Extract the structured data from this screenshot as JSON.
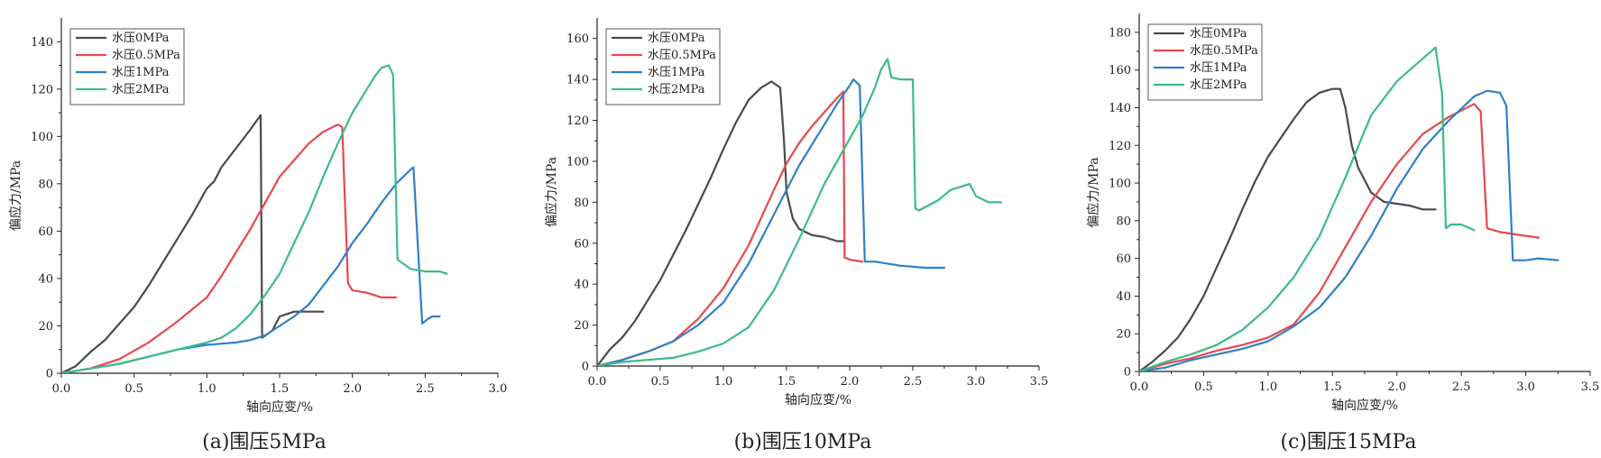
{
  "series_colors": [
    "#4a4a4a",
    "#e8474f",
    "#2f80c6",
    "#3dbb85"
  ],
  "chart_data": [
    {
      "type": "line",
      "caption": "(a)围压5MPa",
      "xlabel": "轴向应变/%",
      "ylabel": "偏应力/MPa",
      "xlim": [
        0,
        3.0
      ],
      "ylim": [
        0,
        150
      ],
      "xticks": [
        0,
        0.5,
        1.0,
        1.5,
        2.0,
        2.5,
        3.0
      ],
      "xtick_labels": [
        "0.0",
        "0.5",
        "1.0",
        "1.5",
        "2.0",
        "2.5",
        "3.0"
      ],
      "yticks": [
        0,
        20,
        40,
        60,
        80,
        100,
        120,
        140
      ],
      "ytick_labels": [
        "0",
        "20",
        "40",
        "60",
        "80",
        "100",
        "120",
        "140"
      ],
      "legend": "top-left",
      "series": [
        {
          "name": "水压0MPa",
          "x": [
            0.0,
            0.1,
            0.2,
            0.3,
            0.4,
            0.5,
            0.6,
            0.7,
            0.8,
            0.9,
            1.0,
            1.05,
            1.1,
            1.2,
            1.3,
            1.37,
            1.38,
            1.45,
            1.5,
            1.6,
            1.7,
            1.8
          ],
          "y": [
            0,
            3,
            9,
            14,
            21,
            28,
            37,
            47,
            57,
            67,
            78,
            81,
            87,
            95,
            103,
            109,
            15,
            18,
            24,
            26,
            26,
            26
          ]
        },
        {
          "name": "水压0.5MPa",
          "x": [
            0.0,
            0.2,
            0.4,
            0.6,
            0.8,
            1.0,
            1.1,
            1.2,
            1.3,
            1.4,
            1.5,
            1.6,
            1.7,
            1.8,
            1.9,
            1.93,
            1.97,
            2.0,
            2.1,
            2.2,
            2.3
          ],
          "y": [
            0,
            2,
            6,
            13,
            22,
            32,
            41,
            51,
            61,
            72,
            83,
            90,
            97,
            102,
            105,
            104,
            38,
            35,
            34,
            32,
            32
          ]
        },
        {
          "name": "水压1MPa",
          "x": [
            0.0,
            0.2,
            0.4,
            0.6,
            0.8,
            1.0,
            1.2,
            1.3,
            1.4,
            1.5,
            1.6,
            1.7,
            1.8,
            1.9,
            2.0,
            2.1,
            2.2,
            2.3,
            2.4,
            2.42,
            2.48,
            2.52,
            2.55,
            2.6
          ],
          "y": [
            0,
            2,
            4,
            7,
            10,
            12,
            13,
            14,
            16,
            20,
            24,
            29,
            37,
            45,
            55,
            63,
            72,
            80,
            86,
            87,
            21,
            23,
            24,
            24
          ]
        },
        {
          "name": "水压2MPa",
          "x": [
            0.0,
            0.2,
            0.4,
            0.6,
            0.8,
            1.0,
            1.1,
            1.2,
            1.3,
            1.4,
            1.5,
            1.6,
            1.7,
            1.8,
            1.9,
            2.0,
            2.1,
            2.15,
            2.2,
            2.25,
            2.28,
            2.31,
            2.4,
            2.5,
            2.6,
            2.65
          ],
          "y": [
            0,
            2,
            4,
            7,
            10,
            13,
            15,
            19,
            25,
            33,
            42,
            55,
            68,
            83,
            97,
            110,
            120,
            125,
            129,
            130,
            126,
            48,
            44,
            43,
            43,
            42
          ]
        }
      ]
    },
    {
      "type": "line",
      "caption": "(b)围压10MPa",
      "xlabel": "轴向应变/%",
      "ylabel": "偏应力/MPa",
      "xlim": [
        0,
        3.5
      ],
      "ylim": [
        0,
        170
      ],
      "xticks": [
        0,
        0.5,
        1.0,
        1.5,
        2.0,
        2.5,
        3.0,
        3.5
      ],
      "xtick_labels": [
        "0.0",
        "0.5",
        "1.0",
        "1.5",
        "2.0",
        "2.5",
        "3.0",
        "3.5"
      ],
      "yticks": [
        0,
        20,
        40,
        60,
        80,
        100,
        120,
        140,
        160
      ],
      "ytick_labels": [
        "0",
        "20",
        "40",
        "60",
        "80",
        "100",
        "120",
        "140",
        "160"
      ],
      "legend": "top-left",
      "series": [
        {
          "name": "水压0MPa",
          "x": [
            0.0,
            0.1,
            0.2,
            0.3,
            0.4,
            0.5,
            0.6,
            0.7,
            0.8,
            0.9,
            1.0,
            1.1,
            1.2,
            1.3,
            1.38,
            1.45,
            1.48,
            1.5,
            1.55,
            1.6,
            1.7,
            1.8,
            1.9,
            1.95
          ],
          "y": [
            0,
            8,
            14,
            22,
            32,
            42,
            54,
            66,
            79,
            92,
            106,
            119,
            130,
            136,
            139,
            136,
            110,
            85,
            72,
            67,
            64,
            63,
            61,
            61
          ]
        },
        {
          "name": "水压0.5MPa",
          "x": [
            0.0,
            0.2,
            0.4,
            0.6,
            0.8,
            1.0,
            1.2,
            1.4,
            1.5,
            1.6,
            1.7,
            1.8,
            1.9,
            1.95,
            1.96,
            2.0,
            2.1
          ],
          "y": [
            0,
            3,
            7,
            12,
            23,
            38,
            59,
            86,
            99,
            109,
            117,
            124,
            131,
            134,
            53,
            52,
            51
          ]
        },
        {
          "name": "水压1MPa",
          "x": [
            0.0,
            0.2,
            0.4,
            0.6,
            0.8,
            1.0,
            1.2,
            1.4,
            1.6,
            1.8,
            1.9,
            2.0,
            2.03,
            2.08,
            2.12,
            2.2,
            2.4,
            2.6,
            2.75
          ],
          "y": [
            0,
            3,
            7,
            12,
            20,
            31,
            50,
            74,
            98,
            118,
            128,
            137,
            140,
            137,
            51,
            51,
            49,
            48,
            48
          ]
        },
        {
          "name": "水压2MPa",
          "x": [
            0.0,
            0.2,
            0.4,
            0.6,
            0.8,
            1.0,
            1.2,
            1.4,
            1.6,
            1.8,
            2.0,
            2.1,
            2.2,
            2.25,
            2.3,
            2.33,
            2.4,
            2.5,
            2.52,
            2.55,
            2.7,
            2.8,
            2.9,
            2.95,
            3.0,
            3.1,
            3.2
          ],
          "y": [
            0,
            2,
            3,
            4,
            7,
            11,
            19,
            37,
            62,
            89,
            111,
            122,
            136,
            145,
            150,
            141,
            140,
            140,
            77,
            76,
            81,
            86,
            88,
            89,
            83,
            80,
            80
          ]
        }
      ]
    },
    {
      "type": "line",
      "caption": "(c)围压15MPa",
      "xlabel": "轴向应变/%",
      "ylabel": "偏应力/MPa",
      "xlim": [
        0,
        3.5
      ],
      "ylim": [
        0,
        190
      ],
      "xticks": [
        0,
        0.5,
        1.0,
        1.5,
        2.0,
        2.5,
        3.0,
        3.5
      ],
      "xtick_labels": [
        "0.0",
        "0.5",
        "1.0",
        "1.5",
        "2.0",
        "2.5",
        "3.0",
        "3.5"
      ],
      "yticks": [
        0,
        20,
        40,
        60,
        80,
        100,
        120,
        140,
        160,
        180
      ],
      "ytick_labels": [
        "0",
        "20",
        "40",
        "60",
        "80",
        "100",
        "120",
        "140",
        "160",
        "180"
      ],
      "legend": "top-left",
      "series": [
        {
          "name": "水压0MPa",
          "x": [
            0.0,
            0.1,
            0.2,
            0.3,
            0.4,
            0.5,
            0.6,
            0.7,
            0.8,
            0.9,
            1.0,
            1.1,
            1.2,
            1.3,
            1.4,
            1.5,
            1.56,
            1.6,
            1.65,
            1.7,
            1.8,
            1.9,
            2.0,
            2.1,
            2.2,
            2.3
          ],
          "y": [
            0,
            5,
            11,
            18,
            28,
            40,
            55,
            70,
            86,
            101,
            114,
            124,
            134,
            143,
            148,
            150,
            150,
            140,
            120,
            108,
            95,
            90,
            89,
            88,
            86,
            86
          ]
        },
        {
          "name": "水压0.5MPa",
          "x": [
            0.0,
            0.2,
            0.4,
            0.6,
            0.8,
            1.0,
            1.2,
            1.4,
            1.6,
            1.8,
            2.0,
            2.2,
            2.4,
            2.6,
            2.65,
            2.7,
            2.8,
            2.9,
            3.0,
            3.1
          ],
          "y": [
            0,
            4,
            7,
            11,
            14,
            18,
            25,
            42,
            66,
            90,
            110,
            126,
            135,
            142,
            138,
            76,
            74,
            73,
            72,
            71
          ]
        },
        {
          "name": "水压1MPa",
          "x": [
            0.0,
            0.2,
            0.4,
            0.6,
            0.8,
            1.0,
            1.2,
            1.4,
            1.6,
            1.8,
            2.0,
            2.2,
            2.4,
            2.6,
            2.7,
            2.8,
            2.85,
            2.9,
            3.0,
            3.1,
            3.25
          ],
          "y": [
            0,
            2,
            6,
            9,
            12,
            16,
            24,
            34,
            50,
            72,
            97,
            118,
            133,
            146,
            149,
            148,
            141,
            59,
            59,
            60,
            59
          ]
        },
        {
          "name": "水压2MPa",
          "x": [
            0.0,
            0.2,
            0.4,
            0.6,
            0.8,
            1.0,
            1.2,
            1.4,
            1.6,
            1.8,
            2.0,
            2.2,
            2.3,
            2.35,
            2.38,
            2.42,
            2.5,
            2.6
          ],
          "y": [
            0,
            5,
            9,
            14,
            22,
            34,
            50,
            72,
            103,
            136,
            154,
            166,
            172,
            148,
            76,
            78,
            78,
            75
          ]
        }
      ]
    }
  ]
}
